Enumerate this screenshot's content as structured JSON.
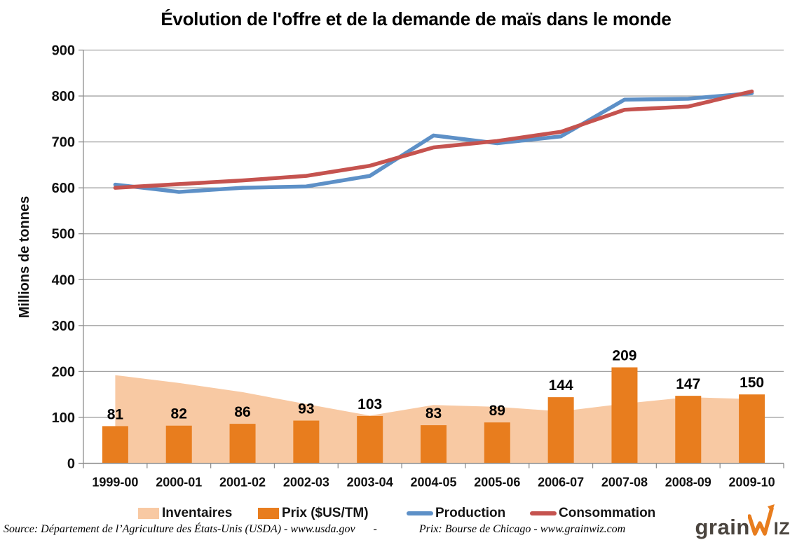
{
  "chart_data": {
    "type": "composite",
    "title": "Évolution de l'offre et de la demande de maïs dans le monde",
    "ylabel": "Millions de tonnes",
    "ylim": [
      0,
      900
    ],
    "ytick_step": 100,
    "grid": "horizontal",
    "grid_color": "#A3A3A3",
    "axis_color": "#8F8F8F",
    "label_color": "#111111",
    "legend_position": "bottom",
    "categories": [
      "1999-00",
      "2000-01",
      "2001-02",
      "2002-03",
      "2003-04",
      "2004-05",
      "2005-06",
      "2006-07",
      "2007-08",
      "2008-09",
      "2009-10"
    ],
    "series": [
      {
        "name": "Inventaires",
        "type": "area",
        "color": "#F8C9A3",
        "values": [
          192,
          175,
          155,
          129,
          104,
          127,
          123,
          113,
          130,
          144,
          140
        ]
      },
      {
        "name": "Prix ($US/TM)",
        "type": "bar",
        "color": "#E87D1E",
        "data_labels": true,
        "values": [
          81,
          82,
          86,
          93,
          103,
          83,
          89,
          144,
          209,
          147,
          150
        ]
      },
      {
        "name": "Production",
        "type": "line",
        "color": "#5D90C7",
        "values": [
          607,
          591,
          600,
          603,
          626,
          714,
          697,
          712,
          792,
          794,
          806
        ]
      },
      {
        "name": "Consommation",
        "type": "line",
        "color": "#C5534F",
        "values": [
          600,
          608,
          616,
          626,
          648,
          688,
          702,
          722,
          770,
          777,
          810
        ]
      }
    ]
  },
  "source": {
    "left": "Source: Département de l’Agriculture des États-Unis (USDA) - www.usda.gov",
    "sep": "-",
    "right": "Prix: Bourse de Chicago - www.grainwiz.com"
  },
  "logo": {
    "prefix": "grain",
    "suffix": "IZ",
    "text_color": "#4A443E",
    "zigzag_color": "#E87D1E"
  }
}
